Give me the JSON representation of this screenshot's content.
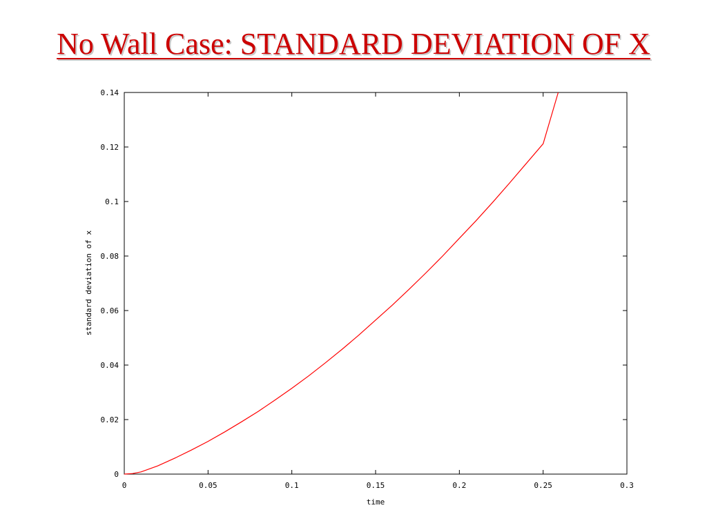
{
  "slide": {
    "title": "No Wall Case: STANDARD DEVIATION OF X"
  },
  "chart_data": {
    "type": "line",
    "title": "",
    "xlabel": "time",
    "ylabel": "standard deviation of x",
    "xlim": [
      0,
      0.3
    ],
    "ylim": [
      0,
      0.14
    ],
    "x_ticks": [
      0,
      0.05,
      0.1,
      0.15,
      0.2,
      0.25,
      0.3
    ],
    "x_tick_labels": [
      "0",
      "0.05",
      "0.1",
      "0.15",
      "0.2",
      "0.25",
      "0.3"
    ],
    "y_ticks": [
      0,
      0.02,
      0.04,
      0.06,
      0.08,
      0.1,
      0.12,
      0.14
    ],
    "y_tick_labels": [
      "0",
      "0.02",
      "0.04",
      "0.06",
      "0.08",
      "0.1",
      "0.12",
      "0.14"
    ],
    "grid": false,
    "legend": "none",
    "series": [
      {
        "color": "#ff0000",
        "x": [
          0,
          0.005,
          0.01,
          0.02,
          0.03,
          0.04,
          0.05,
          0.06,
          0.07,
          0.08,
          0.09,
          0.1,
          0.11,
          0.12,
          0.13,
          0.14,
          0.15,
          0.16,
          0.17,
          0.18,
          0.19,
          0.2,
          0.21,
          0.22,
          0.23,
          0.24,
          0.25,
          0.259
        ],
        "y": [
          0,
          0.0002,
          0.0008,
          0.003,
          0.0058,
          0.0088,
          0.012,
          0.0155,
          0.0192,
          0.023,
          0.0272,
          0.0315,
          0.036,
          0.0408,
          0.0458,
          0.051,
          0.0565,
          0.062,
          0.0678,
          0.0738,
          0.08,
          0.0865,
          0.093,
          0.0998,
          0.1068,
          0.114,
          0.1212,
          0.14
        ]
      }
    ]
  }
}
